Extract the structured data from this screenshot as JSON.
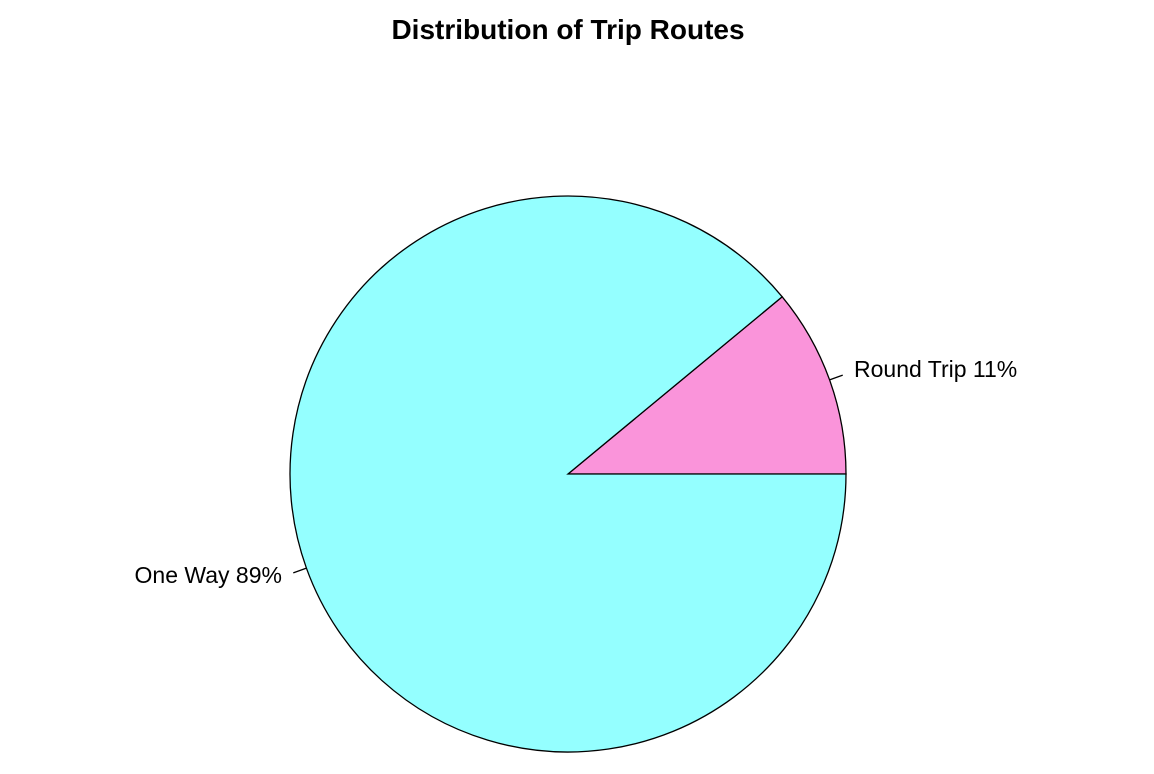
{
  "chart_data": {
    "type": "pie",
    "title": "Distribution of Trip Routes",
    "slices": [
      {
        "label": "Round Trip 11%",
        "value": 11,
        "color": "#FA94DA"
      },
      {
        "label": "One Way 89%",
        "value": 89,
        "color": "#94FFFF"
      }
    ],
    "start_angle_deg": 0,
    "direction": "counterclockwise",
    "legend": "none"
  }
}
